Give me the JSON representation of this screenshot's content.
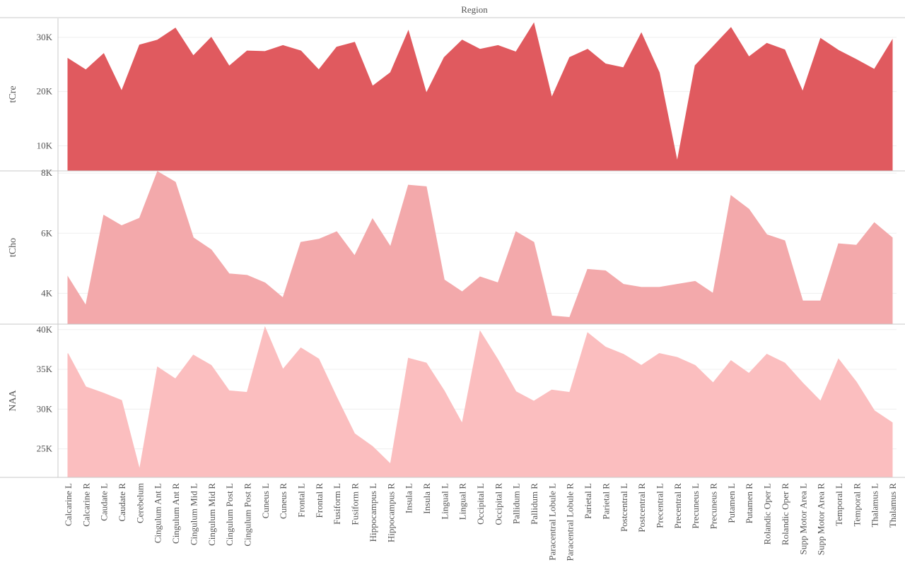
{
  "chart_data": {
    "type": "area",
    "title": "",
    "column_header": "Region",
    "categories": [
      "Calcarine L",
      "Calcarine R",
      "Caudate L",
      "Caudate R",
      "Cerebelum",
      "Cingulum Ant L",
      "Cingulum Ant R",
      "Cingulum Mid L",
      "Cingulum Mid R",
      "Cingulum Post L",
      "Cingulum Post R",
      "Cuneus L",
      "Cuneus R",
      "Frontal L",
      "Frontal R",
      "Fusiform L",
      "Fusiform R",
      "Hippocampus L",
      "Hippocampus R",
      "Insula L",
      "Insula R",
      "Lingual L",
      "Lingual R",
      "Occipital L",
      "Occipital R",
      "Pallidum L",
      "Pallidum R",
      "Paracentral Lobule L",
      "Paracentral Lobule R",
      "Parietal L",
      "Parietal R",
      "Postcentral L",
      "Postcentral R",
      "Precentral L",
      "Precentral R",
      "Precuneus L",
      "Precuneus R",
      "Putamen L",
      "Putamen R",
      "Rolandic Oper L",
      "Rolandic Oper R",
      "Supp Motor Area L",
      "Supp Motor Area R",
      "Temporal L",
      "Temporal R",
      "Thalamus L",
      "Thalamus R"
    ],
    "grid": true,
    "legend": "none",
    "panels": [
      {
        "name": "tCre",
        "color": "#e05a5f",
        "ylim": [
          5500,
          33500
        ],
        "ticks": [
          10000,
          20000,
          30000
        ],
        "tick_labels": [
          "10K",
          "20K",
          "30K"
        ],
        "values": [
          26100,
          24000,
          27000,
          20100,
          28600,
          29500,
          31700,
          26600,
          30000,
          24700,
          27500,
          27400,
          28500,
          27500,
          24000,
          28200,
          29100,
          21000,
          23500,
          31200,
          19700,
          26300,
          29500,
          27800,
          28500,
          27300,
          32600,
          18900,
          26300,
          27800,
          25100,
          24400,
          30800,
          23500,
          7100,
          24800,
          28300,
          31800,
          26400,
          28900,
          27700,
          20000,
          29800,
          27600,
          25900,
          24100,
          29500
        ]
      },
      {
        "name": "tCho",
        "color": "#f3a9ab",
        "ylim": [
          3000,
          8050
        ],
        "ticks": [
          4000,
          6000,
          8000
        ],
        "tick_labels": [
          "4K",
          "6K",
          "8K"
        ],
        "values": [
          4550,
          3600,
          6600,
          6250,
          6500,
          8050,
          7700,
          5850,
          5450,
          4650,
          4600,
          4350,
          3850,
          5700,
          5800,
          6050,
          5250,
          6480,
          5550,
          7600,
          7550,
          4450,
          4050,
          4550,
          4350,
          6050,
          5700,
          3250,
          3200,
          4800,
          4750,
          4300,
          4200,
          4200,
          4300,
          4400,
          4000,
          7250,
          6800,
          5950,
          5750,
          3750,
          3750,
          5650,
          5600,
          6350,
          5850
        ]
      },
      {
        "name": "NAA",
        "color": "#fbbebf",
        "ylim": [
          21500,
          40600
        ],
        "ticks": [
          25000,
          30000,
          35000,
          40000
        ],
        "tick_labels": [
          "25K",
          "30K",
          "35K",
          "40K"
        ],
        "values": [
          37000,
          32800,
          32000,
          31100,
          22400,
          35300,
          33800,
          36800,
          35500,
          32300,
          32100,
          40300,
          35000,
          37700,
          36300,
          31500,
          26900,
          25300,
          23100,
          36400,
          35800,
          32300,
          28200,
          39800,
          36200,
          32200,
          31000,
          32400,
          32100,
          39600,
          37800,
          36900,
          35500,
          37000,
          36500,
          35500,
          33300,
          36100,
          34500,
          36900,
          35800,
          33300,
          31000,
          36300,
          33400,
          29800,
          28300
        ]
      }
    ]
  }
}
